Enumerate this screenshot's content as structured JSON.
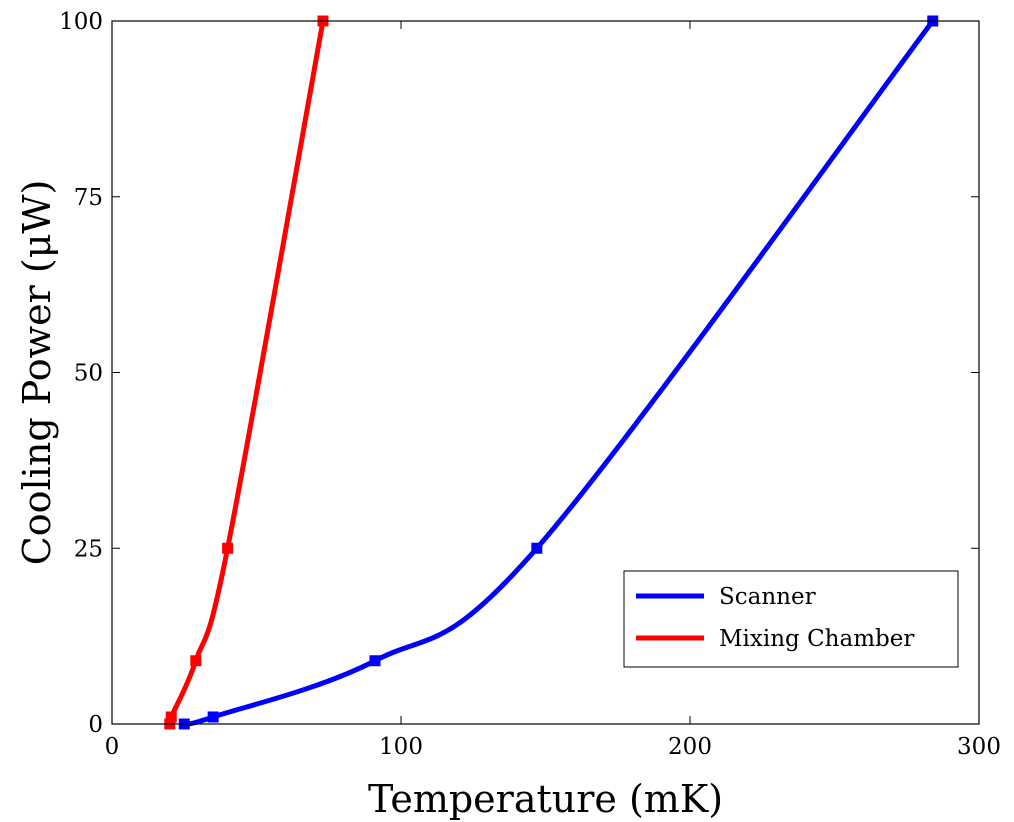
{
  "chart_data": {
    "type": "line",
    "title": "",
    "xlabel": "Temperature (mK)",
    "ylabel": "Cooling Power (μW)",
    "xlim": [
      0,
      300
    ],
    "ylim": [
      0,
      100
    ],
    "x_ticks": [
      0,
      100,
      200,
      300
    ],
    "y_ticks": [
      0,
      25,
      50,
      75,
      100
    ],
    "x_tick_labels": [
      "0",
      "100",
      "200",
      "300"
    ],
    "y_tick_labels": [
      "0",
      "25",
      "50",
      "75",
      "100"
    ],
    "grid": false,
    "legend_position": "lower-right",
    "series": [
      {
        "name": "Scanner",
        "color": "#0000ff",
        "marker": "square",
        "points": [
          {
            "x": 25,
            "y": 0
          },
          {
            "x": 35,
            "y": 1
          },
          {
            "x": 91,
            "y": 9
          },
          {
            "x": 147,
            "y": 25
          },
          {
            "x": 284,
            "y": 100
          }
        ]
      },
      {
        "name": "Mixing Chamber",
        "color": "#ff0000",
        "marker": "square",
        "points": [
          {
            "x": 20,
            "y": 0
          },
          {
            "x": 20.5,
            "y": 1
          },
          {
            "x": 29,
            "y": 9
          },
          {
            "x": 40,
            "y": 25
          },
          {
            "x": 73,
            "y": 100
          }
        ]
      }
    ]
  }
}
